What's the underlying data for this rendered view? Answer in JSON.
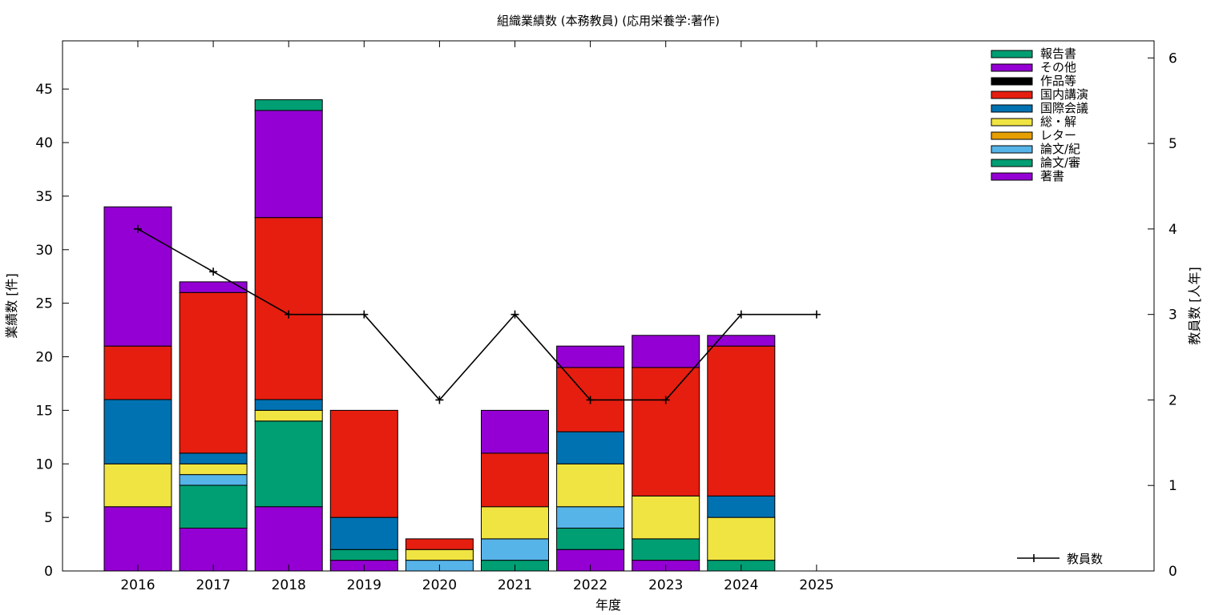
{
  "chart_data": {
    "type": "bar",
    "title": "組織業績数 (本務教員) (応用栄養学:著作)",
    "xlabel": "年度",
    "ylabel": "業績数 [件]",
    "y2label": "教員数 [人年]",
    "categories": [
      "2016",
      "2017",
      "2018",
      "2019",
      "2020",
      "2021",
      "2022",
      "2023",
      "2024",
      "2025"
    ],
    "ylim": [
      0,
      49.5
    ],
    "yticks": [
      0,
      5,
      10,
      15,
      20,
      25,
      30,
      35,
      40,
      45
    ],
    "y2lim": [
      0,
      6.2
    ],
    "y2ticks": [
      0,
      1,
      2,
      3,
      4,
      5,
      6
    ],
    "grid": false,
    "legend_position": "top-right",
    "stacked_series": [
      {
        "name": "著書",
        "color": "#9400d3",
        "values": [
          6,
          4,
          6,
          1,
          0,
          0,
          2,
          1,
          0,
          0
        ]
      },
      {
        "name": "論文/審",
        "color": "#009e73",
        "values": [
          0,
          4,
          8,
          1,
          0,
          1,
          2,
          2,
          1,
          0
        ]
      },
      {
        "name": "論文/紀",
        "color": "#56b4e9",
        "values": [
          0,
          1,
          0,
          0,
          1,
          2,
          2,
          0,
          0,
          0
        ]
      },
      {
        "name": "レター",
        "color": "#e69f00",
        "values": [
          0,
          0,
          0,
          0,
          0,
          0,
          0,
          0,
          0,
          0
        ]
      },
      {
        "name": "総・解",
        "color": "#f0e442",
        "values": [
          4,
          1,
          1,
          0,
          1,
          3,
          4,
          4,
          4,
          0
        ]
      },
      {
        "name": "国際会議",
        "color": "#0072b2",
        "values": [
          6,
          1,
          1,
          3,
          0,
          0,
          3,
          0,
          2,
          0
        ]
      },
      {
        "name": "国内講演",
        "color": "#e51e10",
        "values": [
          5,
          15,
          17,
          10,
          1,
          5,
          6,
          12,
          14,
          0
        ]
      },
      {
        "name": "作品等",
        "color": "#000000",
        "values": [
          0,
          0,
          0,
          0,
          0,
          0,
          0,
          0,
          0,
          0
        ]
      },
      {
        "name": "その他",
        "color": "#9400d3",
        "values": [
          13,
          1,
          10,
          0,
          0,
          4,
          2,
          3,
          1,
          0
        ]
      },
      {
        "name": "報告書",
        "color": "#009e73",
        "values": [
          0,
          0,
          1,
          0,
          0,
          0,
          0,
          0,
          0,
          0
        ]
      }
    ],
    "legend_order": [
      "報告書",
      "その他",
      "作品等",
      "国内講演",
      "国際会議",
      "総・解",
      "レター",
      "論文/紀",
      "論文/審",
      "著書"
    ],
    "line_series": {
      "name": "教員数",
      "axis": "y2",
      "color": "#000000",
      "values": [
        4,
        3.5,
        3,
        3,
        2,
        3,
        2,
        2,
        3,
        3
      ]
    }
  }
}
